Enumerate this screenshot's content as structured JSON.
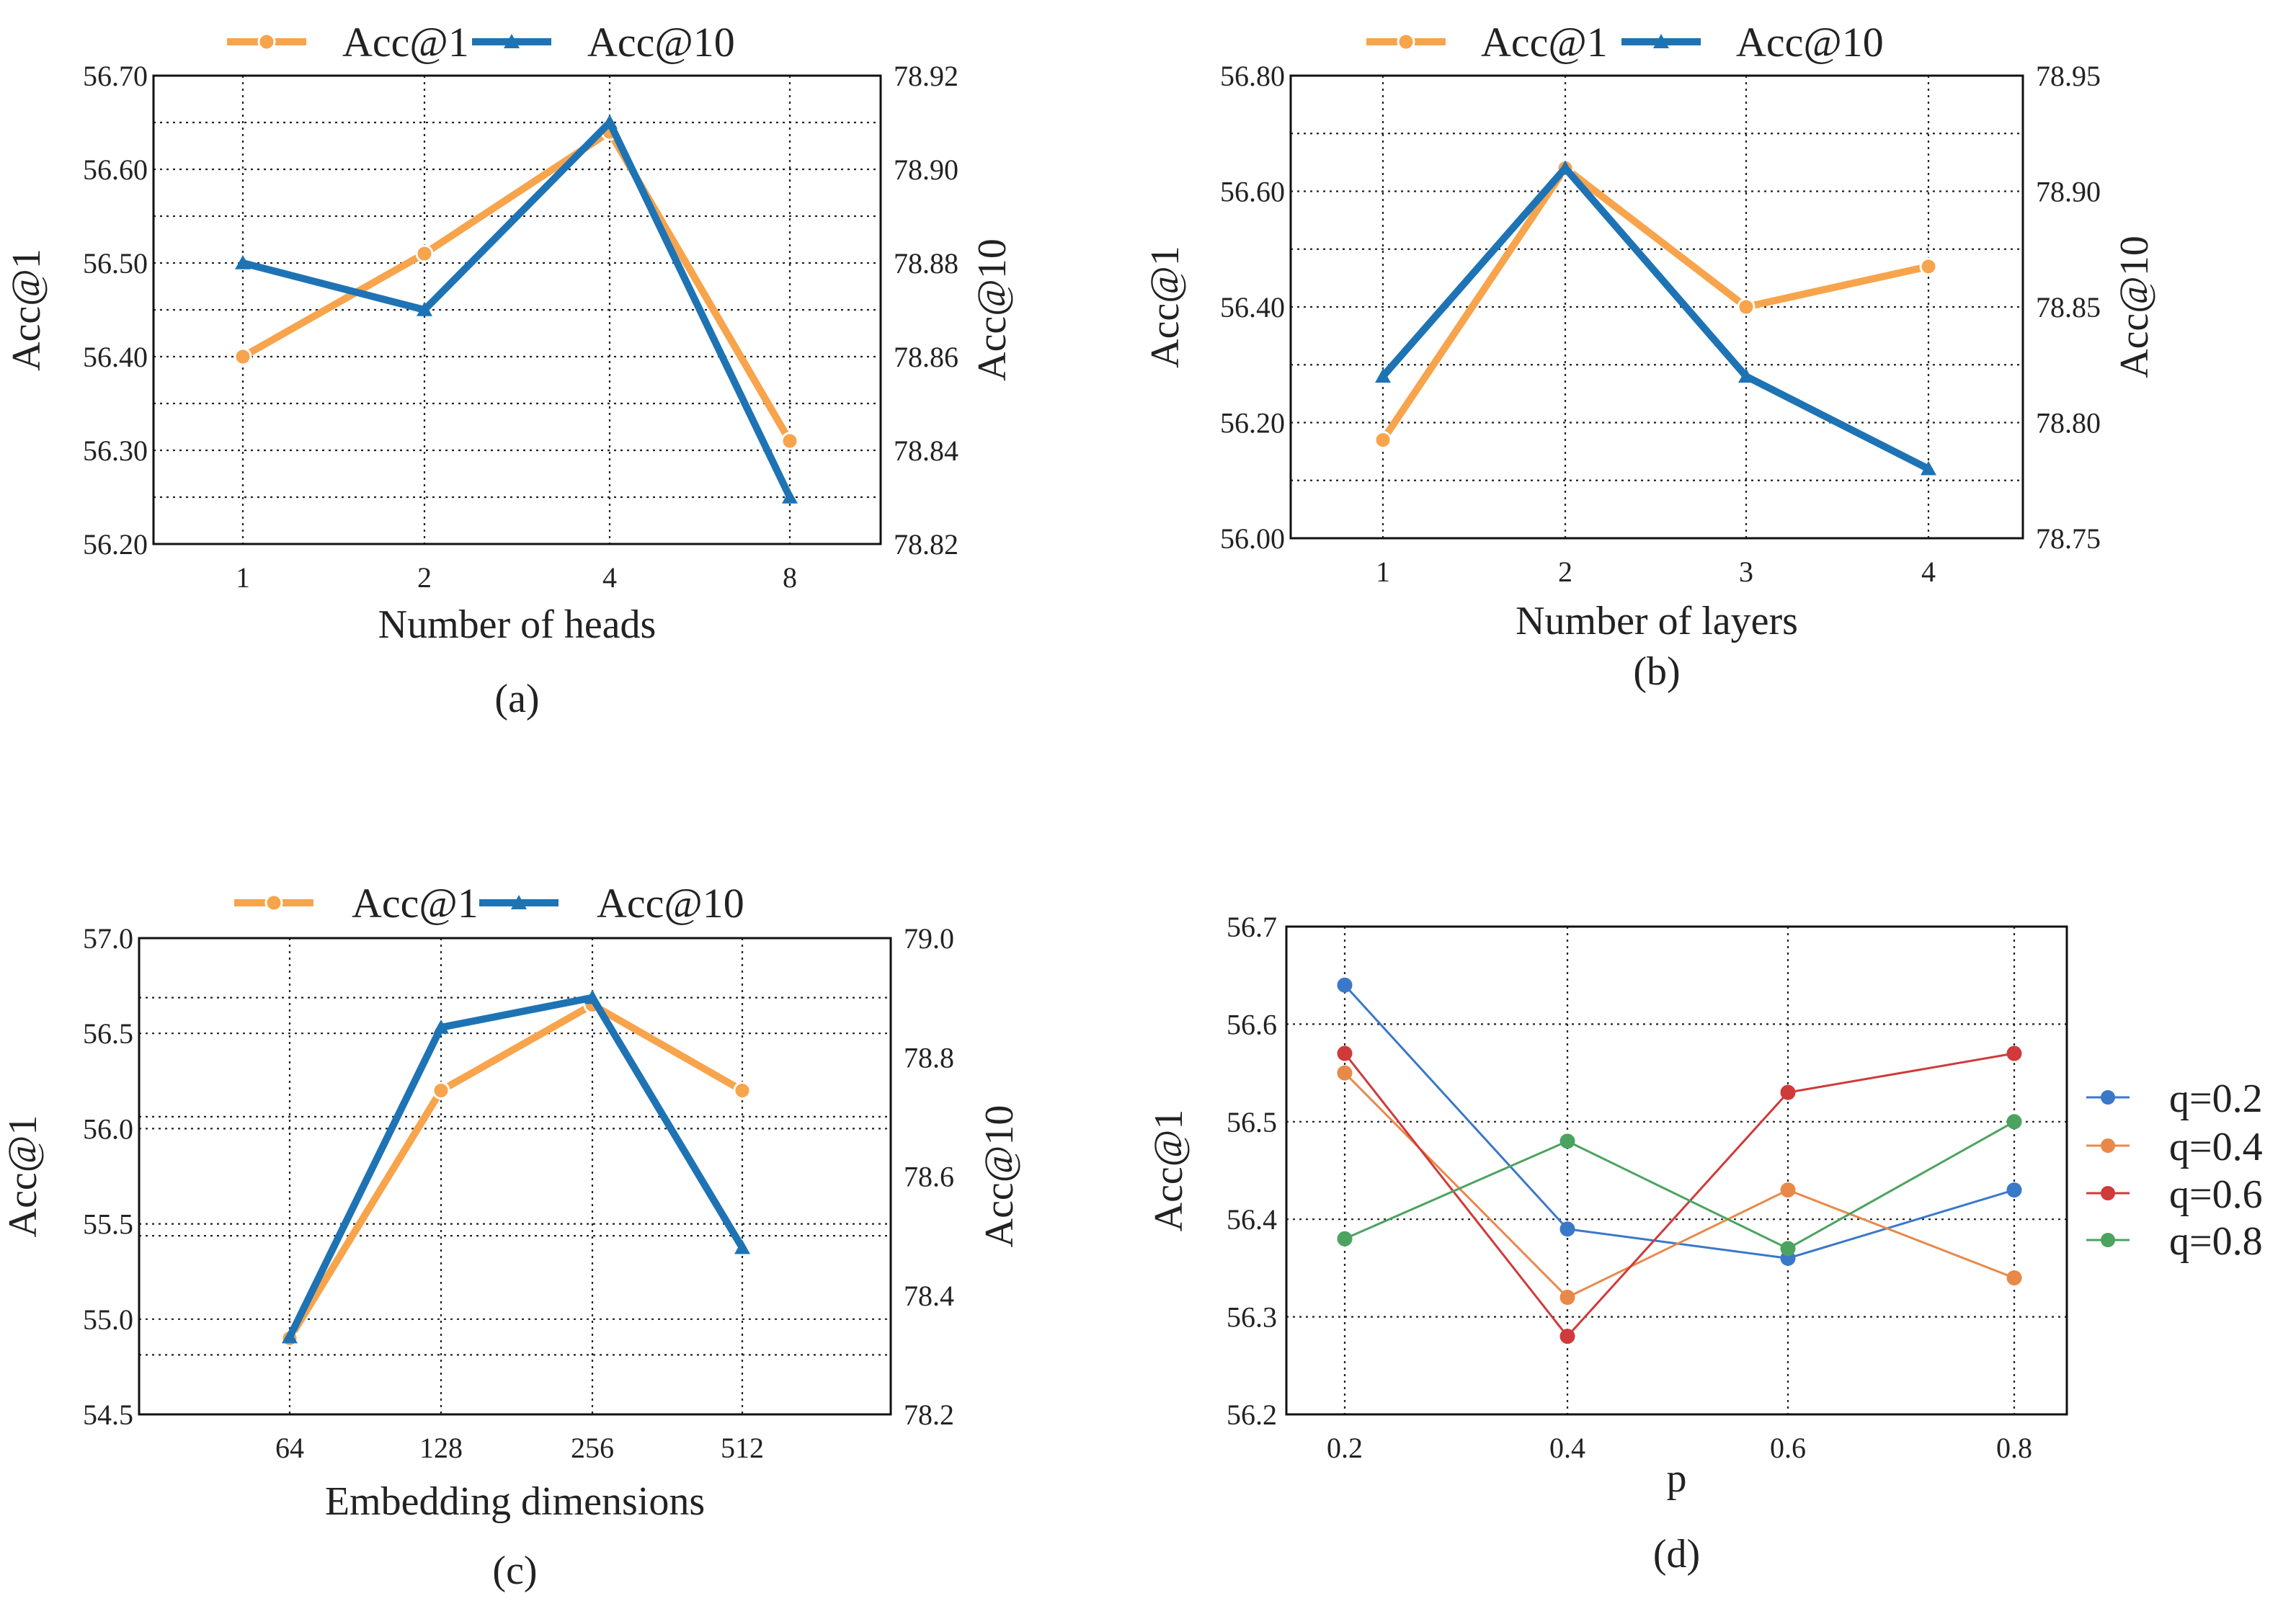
{
  "colors": {
    "acc1": "#F7A44C",
    "acc10": "#1E73B4",
    "q02": "#3A78C9",
    "q04": "#E8894A",
    "q06": "#D03A3A",
    "q08": "#4CA35F"
  },
  "chart_data": [
    {
      "type": "line",
      "caption": "(a)",
      "xlabel": "Number of heads",
      "ylabel": "Acc@1",
      "ylabel_right": "Acc@10",
      "categories": [
        "1",
        "2",
        "4",
        "8"
      ],
      "ylim": [
        56.2,
        56.7
      ],
      "yticks": [
        "56.20",
        "56.30",
        "56.40",
        "56.50",
        "56.60",
        "56.70"
      ],
      "ylim_right": [
        78.82,
        78.92
      ],
      "yticks_right": [
        "78.82",
        "78.84",
        "78.86",
        "78.88",
        "78.90",
        "78.92"
      ],
      "legend": [
        "Acc@1",
        "Acc@10"
      ],
      "series": [
        {
          "name": "Acc@1",
          "axis": "left",
          "values": [
            56.4,
            56.51,
            56.64,
            56.31
          ]
        },
        {
          "name": "Acc@10",
          "axis": "right",
          "values": [
            78.88,
            78.87,
            78.91,
            78.83
          ]
        }
      ]
    },
    {
      "type": "line",
      "caption": "(b)",
      "xlabel": "Number of layers",
      "ylabel": "Acc@1",
      "ylabel_right": "Acc@10",
      "categories": [
        "1",
        "2",
        "3",
        "4"
      ],
      "ylim": [
        56.0,
        56.8
      ],
      "yticks": [
        "56.00",
        "56.20",
        "56.40",
        "56.60",
        "56.80"
      ],
      "ylim_right": [
        78.75,
        78.95
      ],
      "yticks_right": [
        "78.75",
        "78.80",
        "78.85",
        "78.90",
        "78.95"
      ],
      "legend": [
        "Acc@1",
        "Acc@10"
      ],
      "series": [
        {
          "name": "Acc@1",
          "axis": "left",
          "values": [
            56.17,
            56.64,
            56.4,
            56.47
          ]
        },
        {
          "name": "Acc@10",
          "axis": "right",
          "values": [
            78.82,
            78.91,
            78.82,
            78.78
          ]
        }
      ]
    },
    {
      "type": "line",
      "caption": "(c)",
      "xlabel": "Embedding dimensions",
      "ylabel": "Acc@1",
      "ylabel_right": "Acc@10",
      "categories": [
        "64",
        "128",
        "256",
        "512"
      ],
      "ylim": [
        54.5,
        57.0
      ],
      "yticks": [
        "54.5",
        "55.0",
        "55.5",
        "56.0",
        "56.5",
        "57.0"
      ],
      "ylim_right": [
        78.2,
        79.0
      ],
      "yticks_right": [
        "78.2",
        "78.4",
        "78.6",
        "78.8",
        "79.0"
      ],
      "legend": [
        "Acc@1",
        "Acc@10"
      ],
      "series": [
        {
          "name": "Acc@1",
          "axis": "left",
          "values": [
            54.9,
            56.2,
            56.65,
            56.2
          ]
        },
        {
          "name": "Acc@10",
          "axis": "right",
          "values": [
            78.33,
            78.85,
            78.9,
            78.48
          ]
        }
      ]
    },
    {
      "type": "line",
      "caption": "(d)",
      "xlabel": "p",
      "ylabel": "Acc@1",
      "categories": [
        "0.2",
        "0.4",
        "0.6",
        "0.8"
      ],
      "ylim": [
        56.2,
        56.7
      ],
      "yticks": [
        "56.2",
        "56.3",
        "56.4",
        "56.5",
        "56.6",
        "56.7"
      ],
      "legend": [
        "q=0.2",
        "q=0.4",
        "q=0.6",
        "q=0.8"
      ],
      "series": [
        {
          "name": "q=0.2",
          "values": [
            56.64,
            56.39,
            56.36,
            56.43
          ]
        },
        {
          "name": "q=0.4",
          "values": [
            56.55,
            56.32,
            56.43,
            56.34
          ]
        },
        {
          "name": "q=0.6",
          "values": [
            56.57,
            56.28,
            56.53,
            56.57
          ]
        },
        {
          "name": "q=0.8",
          "values": [
            56.38,
            56.48,
            56.37,
            56.5
          ]
        }
      ]
    }
  ]
}
